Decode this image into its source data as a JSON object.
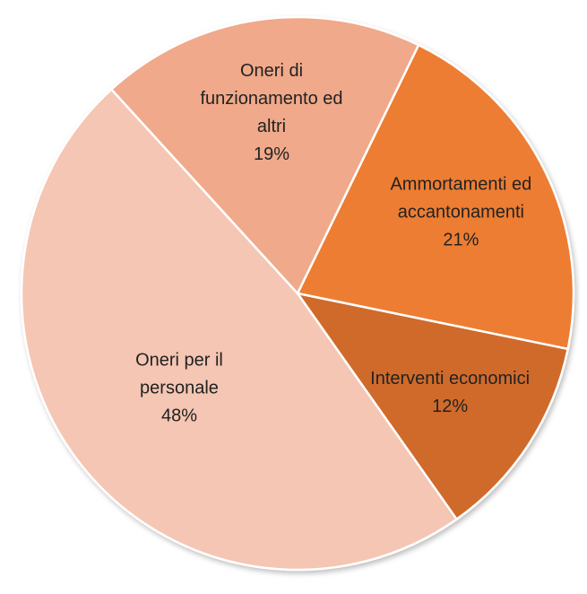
{
  "chart_data": {
    "type": "pie",
    "categories": [
      "Ammortamenti ed accantonamenti",
      "Interventi economici",
      "Oneri per il personale",
      "Oneri di funzionamento ed altri"
    ],
    "values": [
      21,
      12,
      48,
      19
    ],
    "value_labels": [
      "21%",
      "12%",
      "48%",
      "19%"
    ],
    "colors": [
      "#ed7d31",
      "#d06b2b",
      "#f4c6b3",
      "#f0a98a"
    ]
  }
}
